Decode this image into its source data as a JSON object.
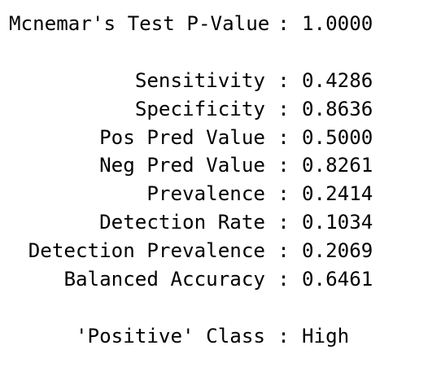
{
  "rows": [
    {
      "label": "Mcnemar's Test P-Value",
      "value": "1.0000"
    },
    {
      "label": "",
      "value": ""
    },
    {
      "label": "Sensitivity",
      "value": "0.4286"
    },
    {
      "label": "Specificity",
      "value": "0.8636"
    },
    {
      "label": "Pos Pred Value",
      "value": "0.5000"
    },
    {
      "label": "Neg Pred Value",
      "value": "0.8261"
    },
    {
      "label": "Prevalence",
      "value": "0.2414"
    },
    {
      "label": "Detection Rate",
      "value": "0.1034"
    },
    {
      "label": "Detection Prevalence",
      "value": "0.2069"
    },
    {
      "label": "Balanced Accuracy",
      "value": "0.6461"
    },
    {
      "label": "",
      "value": ""
    },
    {
      "label": "'Positive' Class",
      "value": "High"
    }
  ],
  "separator": ":"
}
